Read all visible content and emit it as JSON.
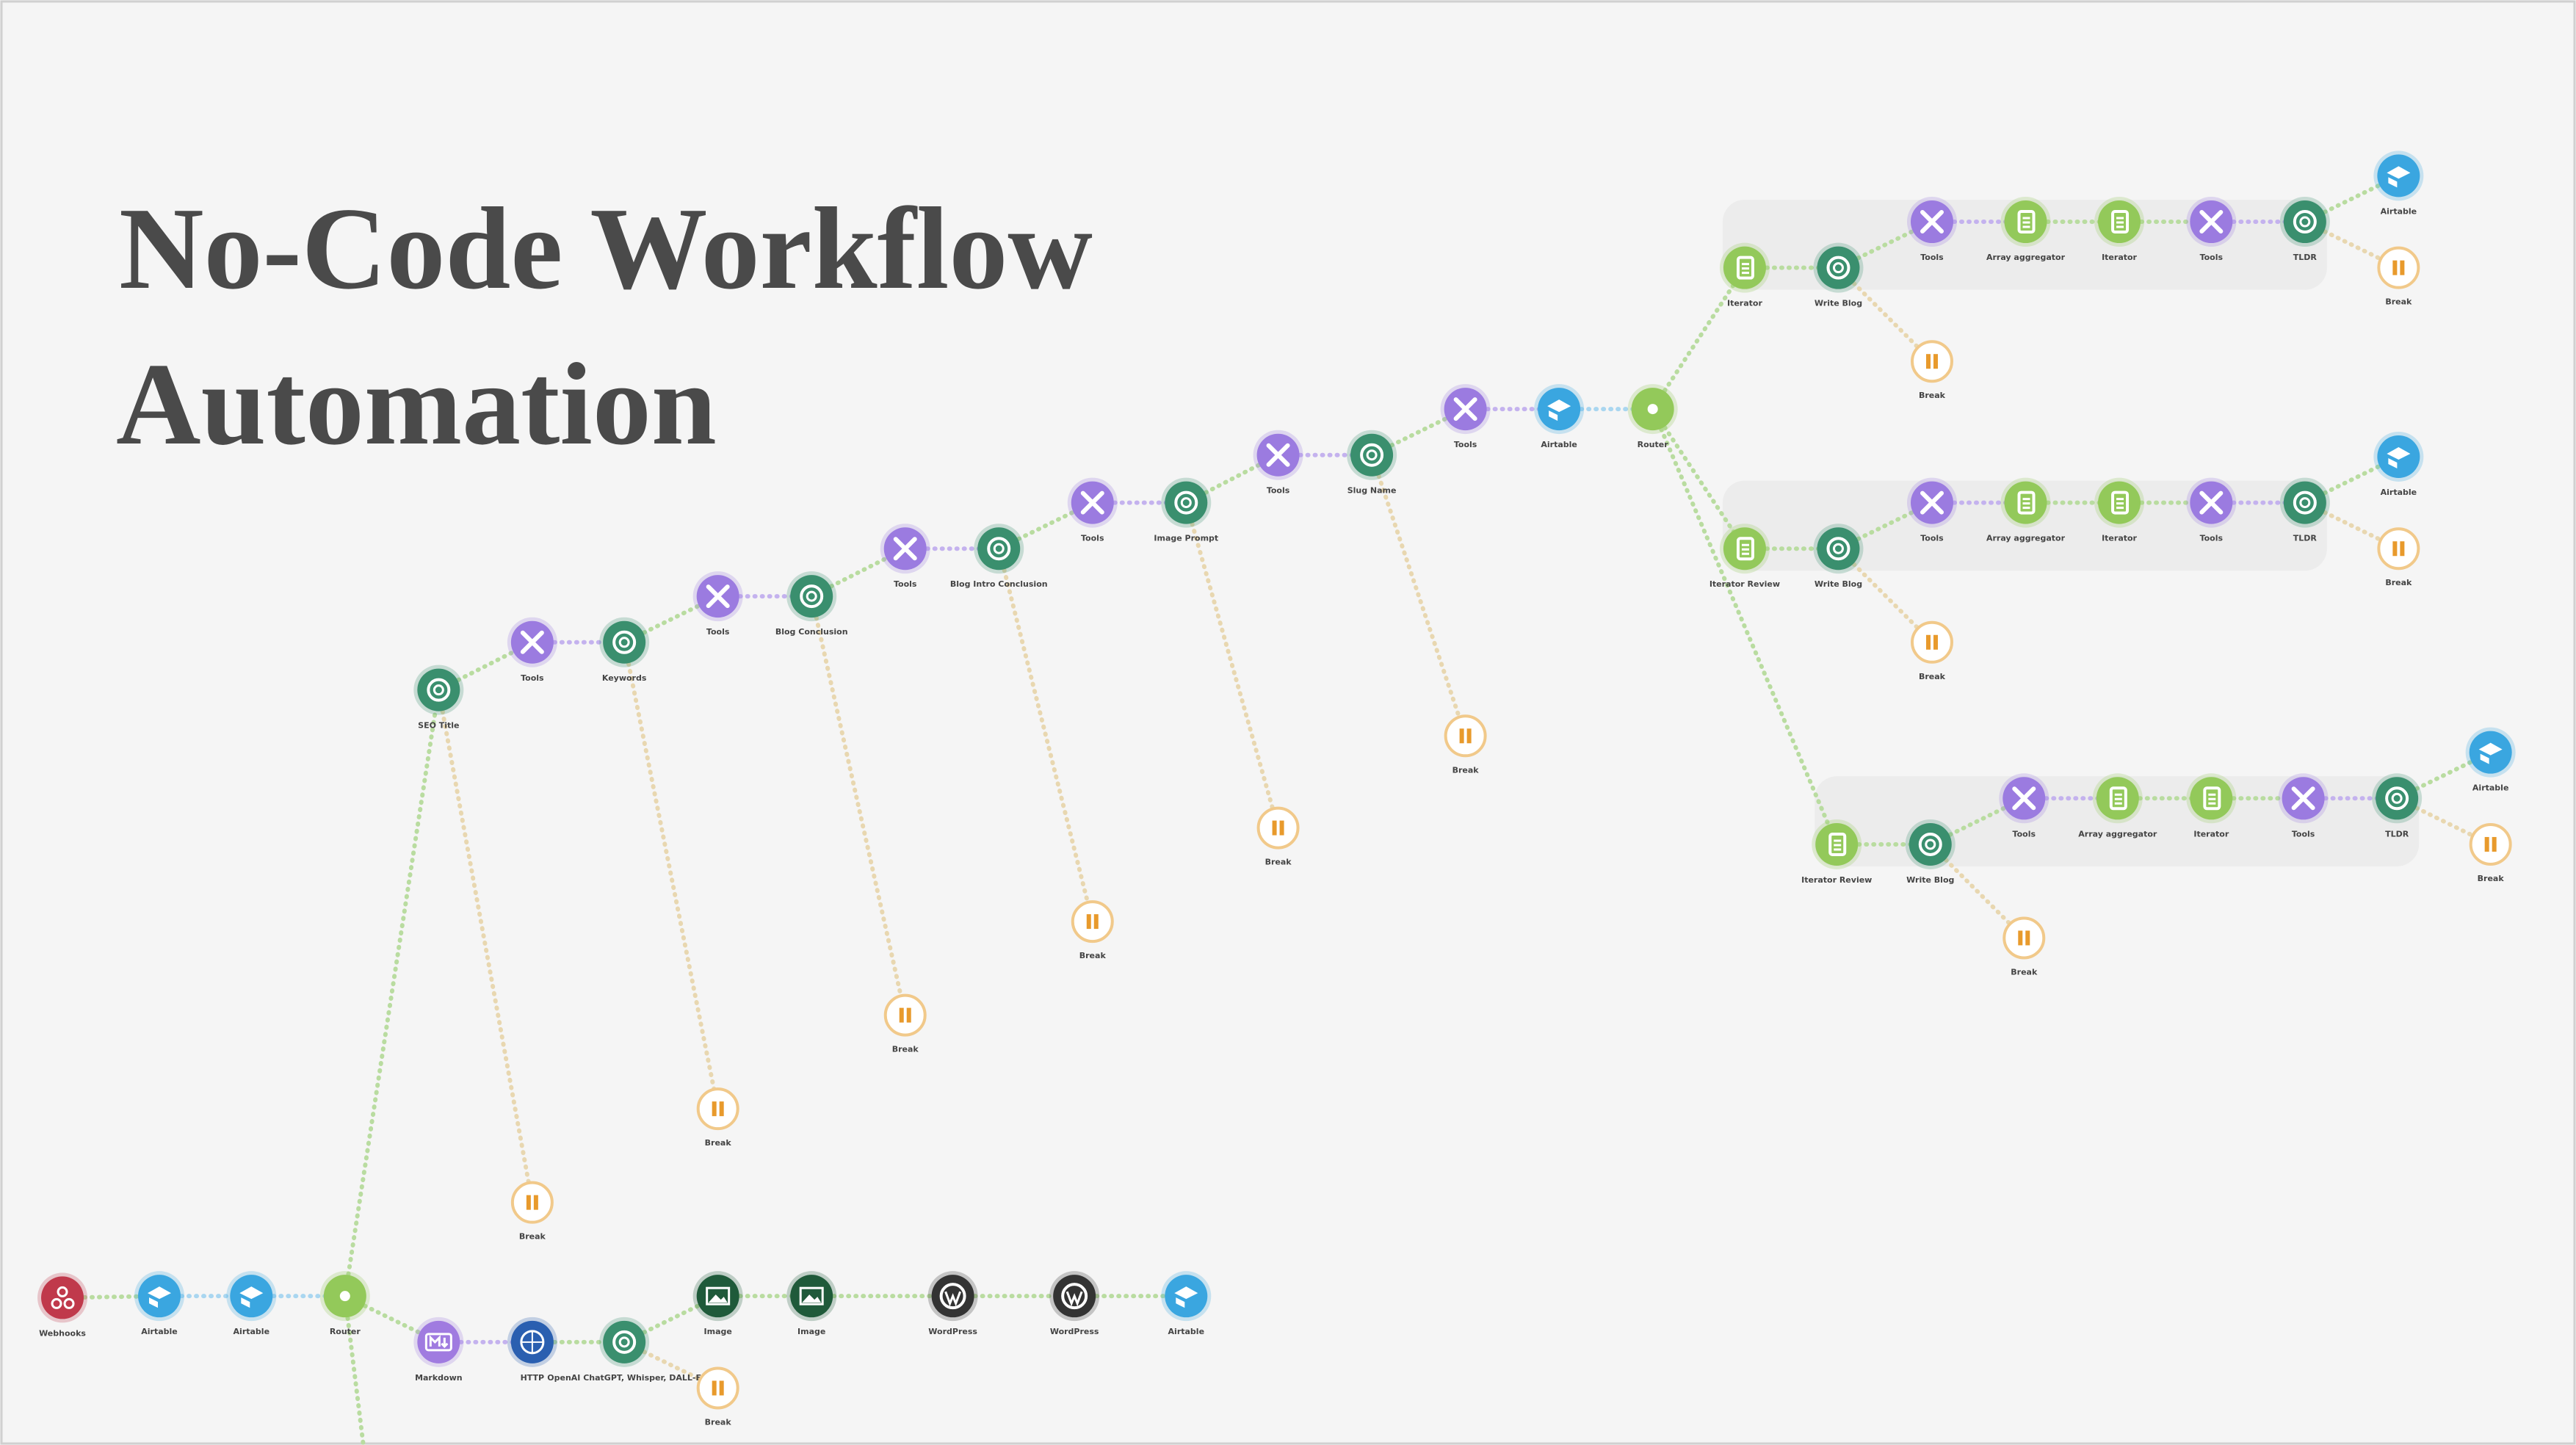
{
  "title_lines": [
    "No-Code Workflow",
    "Automation"
  ],
  "nodes": [
    {
      "label": "Webhooks"
    },
    {
      "label": "Airtable"
    },
    {
      "label": "Airtable"
    },
    {
      "label": "Router"
    },
    {
      "label": "Markdown"
    },
    {
      "label": "HTTP"
    },
    {
      "label": "OpenAI ChatGPT, Whisper, DALL-E"
    },
    {
      "label": "Break"
    },
    {
      "label": "Image"
    },
    {
      "label": "Image"
    },
    {
      "label": "WordPress"
    },
    {
      "label": "WordPress"
    },
    {
      "label": "Airtable"
    },
    {
      "label": "SEO Title"
    },
    {
      "label": "Tools"
    },
    {
      "label": "Keywords"
    },
    {
      "label": "Tools"
    },
    {
      "label": "Blog Conclusion"
    },
    {
      "label": "Tools"
    },
    {
      "label": "Blog Intro Conclusion"
    },
    {
      "label": "Tools"
    },
    {
      "label": "Image Prompt"
    },
    {
      "label": "Tools"
    },
    {
      "label": "Slug Name"
    },
    {
      "label": "Tools"
    },
    {
      "label": "Airtable"
    },
    {
      "label": "Router"
    },
    {
      "label": "Break"
    },
    {
      "label": "Break"
    },
    {
      "label": "Break"
    },
    {
      "label": "Break"
    },
    {
      "label": "Break"
    },
    {
      "label": "Break"
    },
    {
      "label": "Iterator"
    },
    {
      "label": "Write Blog"
    },
    {
      "label": "Tools"
    },
    {
      "label": "Array aggregator"
    },
    {
      "label": "Iterator"
    },
    {
      "label": "Tools"
    },
    {
      "label": "TLDR"
    },
    {
      "label": "Airtable"
    },
    {
      "label": "Break"
    },
    {
      "label": "Break"
    },
    {
      "label": "Iterator Review"
    },
    {
      "label": "Write Blog"
    },
    {
      "label": "Tools"
    },
    {
      "label": "Array aggregator"
    },
    {
      "label": "Iterator"
    },
    {
      "label": "Tools"
    },
    {
      "label": "TLDR"
    },
    {
      "label": "Airtable"
    },
    {
      "label": "Break"
    },
    {
      "label": "Break"
    },
    {
      "label": "Iterator Review"
    },
    {
      "label": "Write Blog"
    },
    {
      "label": "Tools"
    },
    {
      "label": "Array aggregator"
    },
    {
      "label": "Iterator"
    },
    {
      "label": "Tools"
    },
    {
      "label": "TLDR"
    },
    {
      "label": "Airtable"
    },
    {
      "label": "Break"
    },
    {
      "label": "Break"
    }
  ]
}
